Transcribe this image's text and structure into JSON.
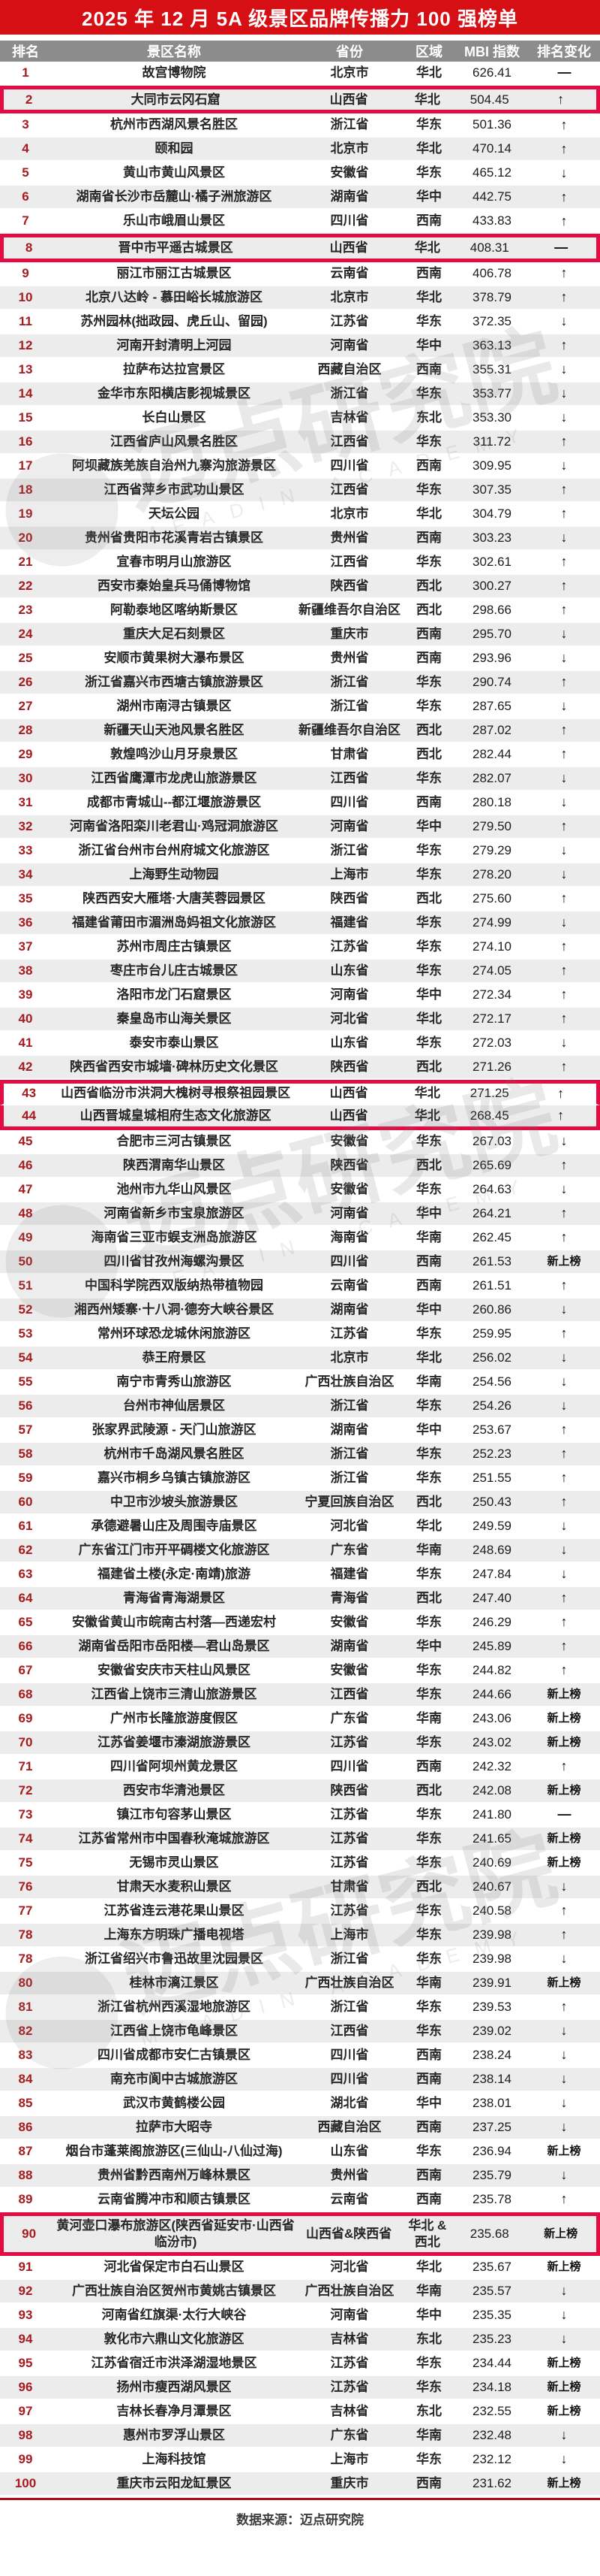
{
  "title": "2025 年 12 月 5A 级景区品牌传播力 100 强榜单",
  "footer": {
    "source": "数据来源：迈点研究院"
  },
  "watermark": {
    "text": "迈点研究院",
    "latin": "MEADIN ACADEMY"
  },
  "colors": {
    "title_bg": "#d50f14",
    "header_bg": "#8c8c8c",
    "alt_row_bg": "#ececec",
    "rank_text": "#a61b1e",
    "highlight_border": "#e30b43",
    "footer_rule": "#ae0b12"
  },
  "table": {
    "columns": [
      "排名",
      "景区名称",
      "省份",
      "区域",
      "MBI 指数",
      "排名变化"
    ],
    "change_glyphs": {
      "up": "↑",
      "down": "↓",
      "same": "—",
      "new": "新上榜"
    },
    "rows": [
      {
        "rank": "1",
        "name": "故宫博物院",
        "province": "北京市",
        "region": "华北",
        "mbi": "626.41",
        "change": "same"
      },
      {
        "rank": "2",
        "name": "大同市云冈石窟",
        "province": "山西省",
        "region": "华北",
        "mbi": "504.45",
        "change": "up",
        "hl": true
      },
      {
        "rank": "3",
        "name": "杭州市西湖风景名胜区",
        "province": "浙江省",
        "region": "华东",
        "mbi": "501.36",
        "change": "up"
      },
      {
        "rank": "4",
        "name": "颐和园",
        "province": "北京市",
        "region": "华北",
        "mbi": "470.14",
        "change": "up"
      },
      {
        "rank": "5",
        "name": "黄山市黄山风景区",
        "province": "安徽省",
        "region": "华东",
        "mbi": "465.12",
        "change": "down"
      },
      {
        "rank": "6",
        "name": "湖南省长沙市岳麓山·橘子洲旅游区",
        "province": "湖南省",
        "region": "华中",
        "mbi": "442.75",
        "change": "up"
      },
      {
        "rank": "7",
        "name": "乐山市峨眉山景区",
        "province": "四川省",
        "region": "西南",
        "mbi": "433.83",
        "change": "up"
      },
      {
        "rank": "8",
        "name": "晋中市平遥古城景区",
        "province": "山西省",
        "region": "华北",
        "mbi": "408.31",
        "change": "same",
        "hl": true
      },
      {
        "rank": "9",
        "name": "丽江市丽江古城景区",
        "province": "云南省",
        "region": "西南",
        "mbi": "406.78",
        "change": "up"
      },
      {
        "rank": "10",
        "name": "北京八达岭 - 慕田峪长城旅游区",
        "province": "北京市",
        "region": "华北",
        "mbi": "378.79",
        "change": "up"
      },
      {
        "rank": "11",
        "name": "苏州园林(拙政园、虎丘山、留园)",
        "province": "江苏省",
        "region": "华东",
        "mbi": "372.35",
        "change": "down"
      },
      {
        "rank": "12",
        "name": "河南开封清明上河园",
        "province": "河南省",
        "region": "华中",
        "mbi": "363.13",
        "change": "up"
      },
      {
        "rank": "13",
        "name": "拉萨布达拉宫景区",
        "province": "西藏自治区",
        "region": "西南",
        "mbi": "355.31",
        "change": "down"
      },
      {
        "rank": "14",
        "name": "金华市东阳横店影视城景区",
        "province": "浙江省",
        "region": "华东",
        "mbi": "353.77",
        "change": "down"
      },
      {
        "rank": "15",
        "name": "长白山景区",
        "province": "吉林省",
        "region": "东北",
        "mbi": "353.30",
        "change": "down"
      },
      {
        "rank": "16",
        "name": "江西省庐山风景名胜区",
        "province": "江西省",
        "region": "华东",
        "mbi": "311.72",
        "change": "up"
      },
      {
        "rank": "17",
        "name": "阿坝藏族羌族自治州九寨沟旅游景区",
        "province": "四川省",
        "region": "西南",
        "mbi": "309.95",
        "change": "down"
      },
      {
        "rank": "18",
        "name": "江西省萍乡市武功山景区",
        "province": "江西省",
        "region": "华东",
        "mbi": "307.35",
        "change": "up"
      },
      {
        "rank": "19",
        "name": "天坛公园",
        "province": "北京市",
        "region": "华北",
        "mbi": "304.79",
        "change": "up"
      },
      {
        "rank": "20",
        "name": "贵州省贵阳市花溪青岩古镇景区",
        "province": "贵州省",
        "region": "西南",
        "mbi": "303.23",
        "change": "down"
      },
      {
        "rank": "21",
        "name": "宜春市明月山旅游区",
        "province": "江西省",
        "region": "华东",
        "mbi": "302.61",
        "change": "up"
      },
      {
        "rank": "22",
        "name": "西安市秦始皇兵马俑博物馆",
        "province": "陕西省",
        "region": "西北",
        "mbi": "300.27",
        "change": "up"
      },
      {
        "rank": "23",
        "name": "阿勒泰地区喀纳斯景区",
        "province": "新疆维吾尔自治区",
        "region": "西北",
        "mbi": "298.66",
        "change": "up"
      },
      {
        "rank": "24",
        "name": "重庆大足石刻景区",
        "province": "重庆市",
        "region": "西南",
        "mbi": "295.70",
        "change": "down"
      },
      {
        "rank": "25",
        "name": "安顺市黄果树大瀑布景区",
        "province": "贵州省",
        "region": "西南",
        "mbi": "293.96",
        "change": "down"
      },
      {
        "rank": "26",
        "name": "浙江省嘉兴市西塘古镇旅游景区",
        "province": "浙江省",
        "region": "华东",
        "mbi": "290.74",
        "change": "up"
      },
      {
        "rank": "27",
        "name": "湖州市南浔古镇景区",
        "province": "浙江省",
        "region": "华东",
        "mbi": "287.65",
        "change": "down"
      },
      {
        "rank": "28",
        "name": "新疆天山天池风景名胜区",
        "province": "新疆维吾尔自治区",
        "region": "西北",
        "mbi": "287.02",
        "change": "up"
      },
      {
        "rank": "29",
        "name": "敦煌鸣沙山月牙泉景区",
        "province": "甘肃省",
        "region": "西北",
        "mbi": "282.44",
        "change": "up"
      },
      {
        "rank": "30",
        "name": "江西省鹰潭市龙虎山旅游景区",
        "province": "江西省",
        "region": "华东",
        "mbi": "282.07",
        "change": "down"
      },
      {
        "rank": "31",
        "name": "成都市青城山--都江堰旅游景区",
        "province": "四川省",
        "region": "西南",
        "mbi": "280.18",
        "change": "down"
      },
      {
        "rank": "32",
        "name": "河南省洛阳栾川老君山·鸡冠洞旅游区",
        "province": "河南省",
        "region": "华中",
        "mbi": "279.50",
        "change": "up"
      },
      {
        "rank": "33",
        "name": "浙江省台州市台州府城文化旅游区",
        "province": "浙江省",
        "region": "华东",
        "mbi": "279.29",
        "change": "down"
      },
      {
        "rank": "34",
        "name": "上海野生动物园",
        "province": "上海市",
        "region": "华东",
        "mbi": "278.20",
        "change": "down"
      },
      {
        "rank": "35",
        "name": "陕西西安大雁塔·大唐芙蓉园景区",
        "province": "陕西省",
        "region": "西北",
        "mbi": "275.60",
        "change": "up"
      },
      {
        "rank": "36",
        "name": "福建省莆田市湄洲岛妈祖文化旅游区",
        "province": "福建省",
        "region": "华东",
        "mbi": "274.99",
        "change": "down"
      },
      {
        "rank": "37",
        "name": "苏州市周庄古镇景区",
        "province": "江苏省",
        "region": "华东",
        "mbi": "274.10",
        "change": "up"
      },
      {
        "rank": "38",
        "name": "枣庄市台儿庄古城景区",
        "province": "山东省",
        "region": "华东",
        "mbi": "274.05",
        "change": "up"
      },
      {
        "rank": "39",
        "name": "洛阳市龙门石窟景区",
        "province": "河南省",
        "region": "华中",
        "mbi": "272.34",
        "change": "up"
      },
      {
        "rank": "40",
        "name": "秦皇岛市山海关景区",
        "province": "河北省",
        "region": "华北",
        "mbi": "272.17",
        "change": "up"
      },
      {
        "rank": "41",
        "name": "泰安市泰山景区",
        "province": "山东省",
        "region": "华东",
        "mbi": "272.03",
        "change": "down"
      },
      {
        "rank": "42",
        "name": "陕西省西安市城墙·碑林历史文化景区",
        "province": "陕西省",
        "region": "西北",
        "mbi": "271.26",
        "change": "up"
      },
      {
        "rank": "43",
        "name": "山西省临汾市洪洞大槐树寻根祭祖园景区",
        "province": "山西省",
        "region": "华北",
        "mbi": "271.25",
        "change": "up",
        "hl": true
      },
      {
        "rank": "44",
        "name": "山西晋城皇城相府生态文化旅游区",
        "province": "山西省",
        "region": "华北",
        "mbi": "268.45",
        "change": "up",
        "hl": true
      },
      {
        "rank": "45",
        "name": "合肥市三河古镇景区",
        "province": "安徽省",
        "region": "华东",
        "mbi": "267.03",
        "change": "down"
      },
      {
        "rank": "46",
        "name": "陕西渭南华山景区",
        "province": "陕西省",
        "region": "西北",
        "mbi": "265.69",
        "change": "up"
      },
      {
        "rank": "47",
        "name": "池州市九华山风景区",
        "province": "安徽省",
        "region": "华东",
        "mbi": "264.63",
        "change": "down"
      },
      {
        "rank": "48",
        "name": "河南省新乡市宝泉旅游区",
        "province": "河南省",
        "region": "华中",
        "mbi": "264.21",
        "change": "up"
      },
      {
        "rank": "49",
        "name": "海南省三亚市蜈支洲岛旅游区",
        "province": "海南省",
        "region": "华南",
        "mbi": "262.45",
        "change": "up"
      },
      {
        "rank": "50",
        "name": "四川省甘孜州海螺沟景区",
        "province": "四川省",
        "region": "西南",
        "mbi": "261.53",
        "change": "new"
      },
      {
        "rank": "51",
        "name": "中国科学院西双版纳热带植物园",
        "province": "云南省",
        "region": "西南",
        "mbi": "261.51",
        "change": "up"
      },
      {
        "rank": "52",
        "name": "湘西州矮寨·十八洞·德夯大峡谷景区",
        "province": "湖南省",
        "region": "华中",
        "mbi": "260.86",
        "change": "down"
      },
      {
        "rank": "53",
        "name": "常州环球恐龙城休闲旅游区",
        "province": "江苏省",
        "region": "华东",
        "mbi": "259.95",
        "change": "up"
      },
      {
        "rank": "54",
        "name": "恭王府景区",
        "province": "北京市",
        "region": "华北",
        "mbi": "256.02",
        "change": "down"
      },
      {
        "rank": "55",
        "name": "南宁市青秀山旅游区",
        "province": "广西壮族自治区",
        "region": "华南",
        "mbi": "254.56",
        "change": "down"
      },
      {
        "rank": "56",
        "name": "台州市神仙居景区",
        "province": "浙江省",
        "region": "华东",
        "mbi": "254.26",
        "change": "down"
      },
      {
        "rank": "57",
        "name": "张家界武陵源 - 天门山旅游区",
        "province": "湖南省",
        "region": "华中",
        "mbi": "253.67",
        "change": "up"
      },
      {
        "rank": "58",
        "name": "杭州市千岛湖风景名胜区",
        "province": "浙江省",
        "region": "华东",
        "mbi": "252.23",
        "change": "up"
      },
      {
        "rank": "59",
        "name": "嘉兴市桐乡乌镇古镇旅游区",
        "province": "浙江省",
        "region": "华东",
        "mbi": "251.55",
        "change": "up"
      },
      {
        "rank": "60",
        "name": "中卫市沙坡头旅游景区",
        "province": "宁夏回族自治区",
        "region": "西北",
        "mbi": "250.43",
        "change": "up"
      },
      {
        "rank": "61",
        "name": "承德避暑山庄及周围寺庙景区",
        "province": "河北省",
        "region": "华北",
        "mbi": "249.59",
        "change": "down"
      },
      {
        "rank": "62",
        "name": "广东省江门市开平碉楼文化旅游区",
        "province": "广东省",
        "region": "华南",
        "mbi": "248.69",
        "change": "down"
      },
      {
        "rank": "63",
        "name": "福建省土楼(永定·南靖)旅游",
        "province": "福建省",
        "region": "华东",
        "mbi": "247.84",
        "change": "down"
      },
      {
        "rank": "64",
        "name": "青海省青海湖景区",
        "province": "青海省",
        "region": "西北",
        "mbi": "247.40",
        "change": "up"
      },
      {
        "rank": "65",
        "name": "安徽省黄山市皖南古村落—西递宏村",
        "province": "安徽省",
        "region": "华东",
        "mbi": "246.29",
        "change": "up"
      },
      {
        "rank": "66",
        "name": "湖南省岳阳市岳阳楼—君山岛景区",
        "province": "湖南省",
        "region": "华中",
        "mbi": "245.89",
        "change": "up"
      },
      {
        "rank": "67",
        "name": "安徽省安庆市天柱山风景区",
        "province": "安徽省",
        "region": "华东",
        "mbi": "244.82",
        "change": "up"
      },
      {
        "rank": "68",
        "name": "江西省上饶市三清山旅游景区",
        "province": "江西省",
        "region": "华东",
        "mbi": "244.66",
        "change": "new"
      },
      {
        "rank": "69",
        "name": "广州市长隆旅游度假区",
        "province": "广东省",
        "region": "华南",
        "mbi": "243.06",
        "change": "new"
      },
      {
        "rank": "70",
        "name": "江苏省姜堰市溱湖旅游景区",
        "province": "江苏省",
        "region": "华东",
        "mbi": "243.02",
        "change": "new"
      },
      {
        "rank": "71",
        "name": "四川省阿坝州黄龙景区",
        "province": "四川省",
        "region": "西南",
        "mbi": "242.32",
        "change": "up"
      },
      {
        "rank": "72",
        "name": "西安市华清池景区",
        "province": "陕西省",
        "region": "西北",
        "mbi": "242.08",
        "change": "new"
      },
      {
        "rank": "73",
        "name": "镇江市句容茅山景区",
        "province": "江苏省",
        "region": "华东",
        "mbi": "241.80",
        "change": "same"
      },
      {
        "rank": "74",
        "name": "江苏省常州市中国春秋淹城旅游区",
        "province": "江苏省",
        "region": "华东",
        "mbi": "241.65",
        "change": "new"
      },
      {
        "rank": "75",
        "name": "无锡市灵山景区",
        "province": "江苏省",
        "region": "华东",
        "mbi": "240.69",
        "change": "new"
      },
      {
        "rank": "76",
        "name": "甘肃天水麦积山景区",
        "province": "甘肃省",
        "region": "西北",
        "mbi": "240.67",
        "change": "down"
      },
      {
        "rank": "77",
        "name": "江苏省连云港花果山景区",
        "province": "江苏省",
        "region": "华东",
        "mbi": "240.58",
        "change": "up"
      },
      {
        "rank": "78",
        "name": "上海东方明珠广播电视塔",
        "province": "上海市",
        "region": "华东",
        "mbi": "239.98",
        "change": "up"
      },
      {
        "rank": "78",
        "name": "浙江省绍兴市鲁迅故里沈园景区",
        "province": "浙江省",
        "region": "华东",
        "mbi": "239.98",
        "change": "down"
      },
      {
        "rank": "80",
        "name": "桂林市漓江景区",
        "province": "广西壮族自治区",
        "region": "华南",
        "mbi": "239.91",
        "change": "new"
      },
      {
        "rank": "81",
        "name": "浙江省杭州西溪湿地旅游区",
        "province": "浙江省",
        "region": "华东",
        "mbi": "239.53",
        "change": "up"
      },
      {
        "rank": "82",
        "name": "江西省上饶市龟峰景区",
        "province": "江西省",
        "region": "华东",
        "mbi": "239.02",
        "change": "down"
      },
      {
        "rank": "83",
        "name": "四川省成都市安仁古镇景区",
        "province": "四川省",
        "region": "西南",
        "mbi": "238.24",
        "change": "down"
      },
      {
        "rank": "84",
        "name": "南充市阆中古城旅游区",
        "province": "四川省",
        "region": "西南",
        "mbi": "238.14",
        "change": "down"
      },
      {
        "rank": "85",
        "name": "武汉市黄鹤楼公园",
        "province": "湖北省",
        "region": "华中",
        "mbi": "238.01",
        "change": "down"
      },
      {
        "rank": "86",
        "name": "拉萨市大昭寺",
        "province": "西藏自治区",
        "region": "西南",
        "mbi": "237.25",
        "change": "down"
      },
      {
        "rank": "87",
        "name": "烟台市蓬莱阁旅游区(三仙山-八仙过海)",
        "province": "山东省",
        "region": "华东",
        "mbi": "236.94",
        "change": "new"
      },
      {
        "rank": "88",
        "name": "贵州省黔西南州万峰林景区",
        "province": "贵州省",
        "region": "西南",
        "mbi": "235.79",
        "change": "down"
      },
      {
        "rank": "89",
        "name": "云南省腾冲市和顺古镇景区",
        "province": "云南省",
        "region": "西南",
        "mbi": "235.78",
        "change": "up"
      },
      {
        "rank": "90",
        "name": "黄河壶口瀑布旅游区(陕西省延安市·山西省临汾市)",
        "province": "山西省&陕西省",
        "region": "华北 & 西北",
        "mbi": "235.68",
        "change": "new",
        "hl": true
      },
      {
        "rank": "91",
        "name": "河北省保定市白石山景区",
        "province": "河北省",
        "region": "华北",
        "mbi": "235.67",
        "change": "new"
      },
      {
        "rank": "92",
        "name": "广西壮族自治区贺州市黄姚古镇景区",
        "province": "广西壮族自治区",
        "region": "华南",
        "mbi": "235.57",
        "change": "down"
      },
      {
        "rank": "93",
        "name": "河南省红旗渠·太行大峡谷",
        "province": "河南省",
        "region": "华中",
        "mbi": "235.35",
        "change": "down"
      },
      {
        "rank": "94",
        "name": "敦化市六鼎山文化旅游区",
        "province": "吉林省",
        "region": "东北",
        "mbi": "235.23",
        "change": "down"
      },
      {
        "rank": "95",
        "name": "江苏省宿迁市洪泽湖湿地景区",
        "province": "江苏省",
        "region": "华东",
        "mbi": "234.44",
        "change": "new"
      },
      {
        "rank": "96",
        "name": "扬州市瘦西湖风景区",
        "province": "江苏省",
        "region": "华东",
        "mbi": "234.18",
        "change": "new"
      },
      {
        "rank": "97",
        "name": "吉林长春净月潭景区",
        "province": "吉林省",
        "region": "东北",
        "mbi": "232.55",
        "change": "new"
      },
      {
        "rank": "98",
        "name": "惠州市罗浮山景区",
        "province": "广东省",
        "region": "华南",
        "mbi": "232.48",
        "change": "down"
      },
      {
        "rank": "99",
        "name": "上海科技馆",
        "province": "上海市",
        "region": "华东",
        "mbi": "232.12",
        "change": "down"
      },
      {
        "rank": "100",
        "name": "重庆市云阳龙缸景区",
        "province": "重庆市",
        "region": "西南",
        "mbi": "231.62",
        "change": "new"
      }
    ]
  }
}
